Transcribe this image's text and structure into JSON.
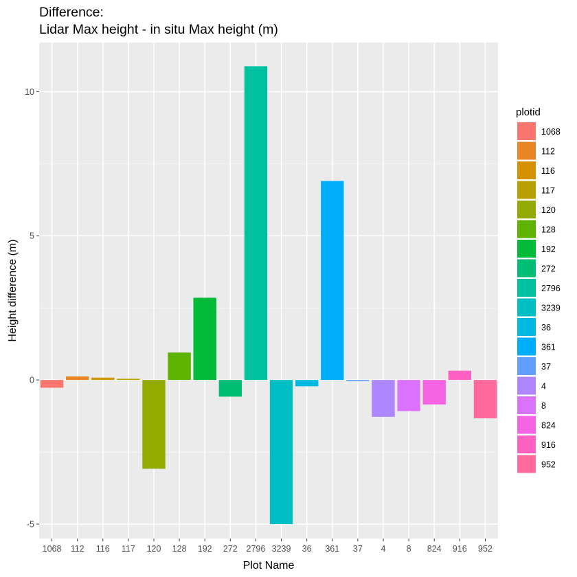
{
  "chart_data": {
    "type": "bar",
    "title_lines": [
      "Difference:",
      "Lidar Max height - in situ Max height (m)"
    ],
    "xlabel": "Plot Name",
    "ylabel": "Height difference (m)",
    "ylim": [
      -5.5,
      11.7
    ],
    "yticks": [
      -5,
      0,
      5,
      10
    ],
    "ytick_labels": [
      "-5",
      "0",
      "5",
      "10"
    ],
    "grid": true,
    "legend": {
      "title": "plotid",
      "position": "right"
    },
    "categories": [
      "1068",
      "112",
      "116",
      "117",
      "120",
      "128",
      "192",
      "272",
      "2796",
      "3239",
      "36",
      "361",
      "37",
      "4",
      "8",
      "824",
      "916",
      "952"
    ],
    "values": [
      -0.27,
      0.12,
      0.08,
      0.04,
      -3.08,
      0.95,
      2.85,
      -0.58,
      10.88,
      -5.0,
      -0.22,
      6.9,
      -0.04,
      -1.28,
      -1.08,
      -0.85,
      0.32,
      -1.33
    ],
    "colors": [
      "#F8766D",
      "#E88526",
      "#D39200",
      "#B79F00",
      "#93AA00",
      "#5EB300",
      "#00BA38",
      "#00BF74",
      "#00C19F",
      "#00BFC4",
      "#00B9E3",
      "#00ADFA",
      "#619CFF",
      "#AE87FF",
      "#DB72FB",
      "#F564E3",
      "#FF61C3",
      "#FF699C"
    ]
  }
}
